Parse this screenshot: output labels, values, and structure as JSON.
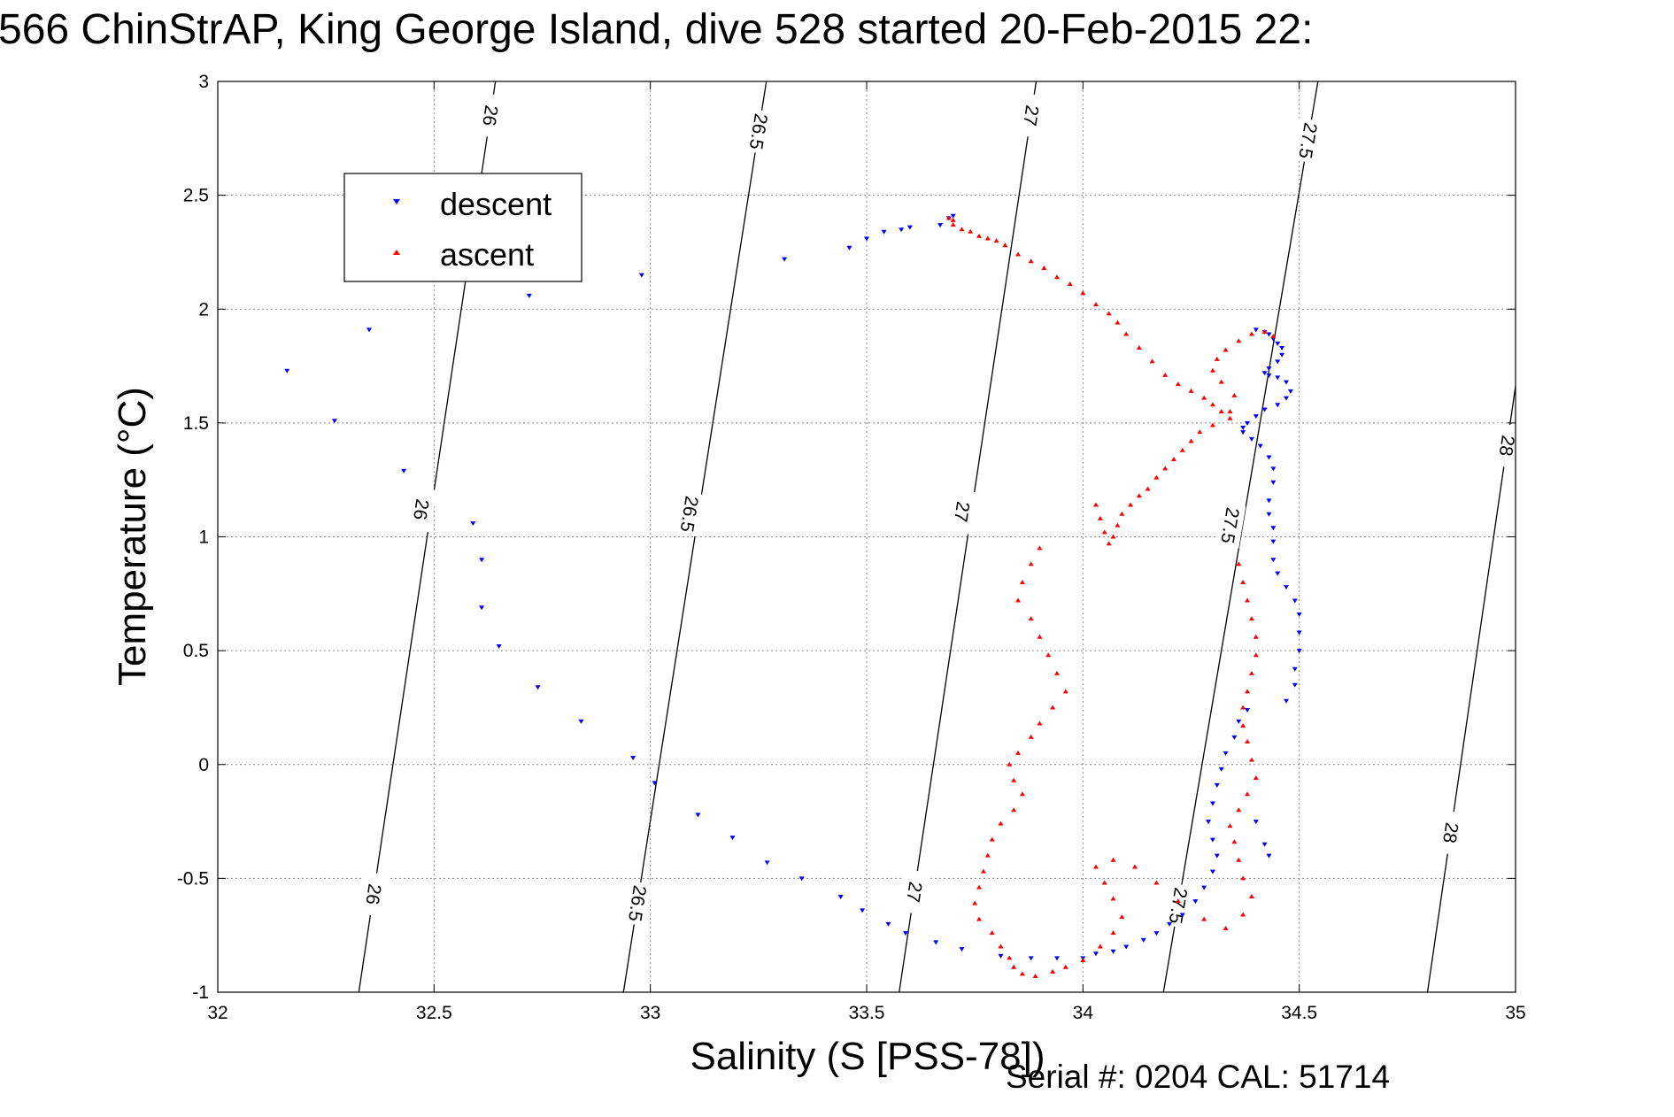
{
  "chart_data": {
    "type": "scatter",
    "title": "566 ChinStrAP, King George Island, dive 528 started 20-Feb-2015 22:",
    "xlabel": "Salinity (S [PSS-78])",
    "ylabel": "Temperature (°C)",
    "xlim": [
      32,
      35
    ],
    "ylim": [
      -1,
      3
    ],
    "xticks": [
      "32",
      "32.5",
      "33",
      "33.5",
      "34",
      "34.5",
      "35"
    ],
    "yticks": [
      "-1",
      "-0.5",
      "0",
      "0.5",
      "1",
      "1.5",
      "2",
      "2.5",
      "3"
    ],
    "grid": true,
    "legend": {
      "placement": "upper-left",
      "entries": [
        "descent",
        "ascent"
      ]
    },
    "colors": {
      "descent": "#0000ff",
      "ascent": "#ff0000",
      "contour": "#000000"
    },
    "series": [
      {
        "name": "descent",
        "marker": "triangle-down",
        "points": [
          [
            32.16,
            1.73
          ],
          [
            32.27,
            1.51
          ],
          [
            32.35,
            1.91
          ],
          [
            32.43,
            1.29
          ],
          [
            32.59,
            1.06
          ],
          [
            32.61,
            0.9
          ],
          [
            32.61,
            0.69
          ],
          [
            32.65,
            0.52
          ],
          [
            32.72,
            2.06
          ],
          [
            32.74,
            0.34
          ],
          [
            32.84,
            0.19
          ],
          [
            32.96,
            0.03
          ],
          [
            32.98,
            2.15
          ],
          [
            33.01,
            -0.08
          ],
          [
            33.11,
            -0.22
          ],
          [
            33.19,
            -0.32
          ],
          [
            33.27,
            -0.43
          ],
          [
            33.31,
            2.22
          ],
          [
            33.35,
            -0.5
          ],
          [
            33.44,
            -0.58
          ],
          [
            33.46,
            2.27
          ],
          [
            33.49,
            -0.64
          ],
          [
            33.5,
            2.31
          ],
          [
            33.54,
            2.34
          ],
          [
            33.58,
            2.35
          ],
          [
            33.6,
            2.36
          ],
          [
            33.67,
            2.37
          ],
          [
            33.69,
            2.4
          ],
          [
            33.7,
            2.41
          ],
          [
            33.55,
            -0.7
          ],
          [
            33.59,
            -0.74
          ],
          [
            33.66,
            -0.78
          ],
          [
            33.72,
            -0.81
          ],
          [
            33.81,
            -0.84
          ],
          [
            33.88,
            -0.85
          ],
          [
            33.94,
            -0.85
          ],
          [
            34.0,
            -0.85
          ],
          [
            34.03,
            -0.83
          ],
          [
            34.07,
            -0.82
          ],
          [
            34.1,
            -0.8
          ],
          [
            34.14,
            -0.77
          ],
          [
            34.17,
            -0.74
          ],
          [
            34.2,
            -0.7
          ],
          [
            34.23,
            -0.66
          ],
          [
            34.26,
            -0.6
          ],
          [
            34.28,
            -0.54
          ],
          [
            34.3,
            -0.47
          ],
          [
            34.31,
            -0.4
          ],
          [
            34.3,
            -0.33
          ],
          [
            34.29,
            -0.25
          ],
          [
            34.3,
            -0.17
          ],
          [
            34.31,
            -0.09
          ],
          [
            34.32,
            -0.02
          ],
          [
            34.33,
            0.05
          ],
          [
            34.35,
            0.12
          ],
          [
            34.36,
            0.19
          ],
          [
            34.38,
            0.24
          ],
          [
            34.4,
            -0.25
          ],
          [
            34.42,
            -0.35
          ],
          [
            34.43,
            -0.4
          ],
          [
            34.47,
            0.28
          ],
          [
            34.49,
            0.35
          ],
          [
            34.49,
            0.42
          ],
          [
            34.5,
            0.5
          ],
          [
            34.5,
            0.58
          ],
          [
            34.5,
            0.66
          ],
          [
            34.49,
            0.72
          ],
          [
            34.47,
            0.78
          ],
          [
            34.45,
            0.84
          ],
          [
            34.44,
            0.9
          ],
          [
            34.44,
            0.98
          ],
          [
            34.44,
            1.04
          ],
          [
            34.43,
            1.1
          ],
          [
            34.43,
            1.16
          ],
          [
            34.44,
            1.24
          ],
          [
            34.44,
            1.3
          ],
          [
            34.43,
            1.35
          ],
          [
            34.41,
            1.4
          ],
          [
            34.39,
            1.43
          ],
          [
            34.37,
            1.46
          ],
          [
            34.37,
            1.48
          ],
          [
            34.38,
            1.5
          ],
          [
            34.4,
            1.53
          ],
          [
            34.42,
            1.56
          ],
          [
            34.45,
            1.58
          ],
          [
            34.47,
            1.61
          ],
          [
            34.48,
            1.64
          ],
          [
            34.47,
            1.68
          ],
          [
            34.45,
            1.7
          ],
          [
            34.43,
            1.71
          ],
          [
            34.42,
            1.72
          ],
          [
            34.43,
            1.74
          ],
          [
            34.45,
            1.77
          ],
          [
            34.46,
            1.8
          ],
          [
            34.46,
            1.83
          ],
          [
            34.45,
            1.85
          ],
          [
            34.44,
            1.87
          ],
          [
            34.43,
            1.89
          ],
          [
            34.42,
            1.9
          ],
          [
            34.4,
            1.91
          ]
        ]
      },
      {
        "name": "ascent",
        "marker": "triangle-up",
        "points": [
          [
            33.69,
            2.4
          ],
          [
            33.7,
            2.39
          ],
          [
            33.7,
            2.37
          ],
          [
            33.72,
            2.35
          ],
          [
            33.74,
            2.34
          ],
          [
            33.76,
            2.32
          ],
          [
            33.78,
            2.31
          ],
          [
            33.8,
            2.3
          ],
          [
            33.82,
            2.28
          ],
          [
            33.85,
            2.24
          ],
          [
            33.88,
            2.21
          ],
          [
            33.91,
            2.18
          ],
          [
            33.94,
            2.14
          ],
          [
            33.97,
            2.11
          ],
          [
            34.0,
            2.07
          ],
          [
            34.03,
            2.02
          ],
          [
            34.06,
            1.98
          ],
          [
            34.08,
            1.94
          ],
          [
            34.1,
            1.89
          ],
          [
            34.13,
            1.83
          ],
          [
            34.16,
            1.77
          ],
          [
            34.19,
            1.71
          ],
          [
            34.22,
            1.67
          ],
          [
            34.25,
            1.64
          ],
          [
            34.28,
            1.61
          ],
          [
            34.3,
            1.58
          ],
          [
            34.32,
            1.55
          ],
          [
            34.34,
            1.52
          ],
          [
            34.3,
            1.49
          ],
          [
            34.27,
            1.46
          ],
          [
            34.25,
            1.42
          ],
          [
            34.23,
            1.38
          ],
          [
            34.21,
            1.34
          ],
          [
            34.19,
            1.3
          ],
          [
            34.17,
            1.26
          ],
          [
            34.15,
            1.21
          ],
          [
            34.13,
            1.18
          ],
          [
            34.11,
            1.14
          ],
          [
            34.09,
            1.1
          ],
          [
            34.08,
            1.05
          ],
          [
            34.07,
            1.0
          ],
          [
            34.06,
            0.97
          ],
          [
            34.05,
            1.02
          ],
          [
            34.04,
            1.08
          ],
          [
            34.03,
            1.14
          ],
          [
            34.34,
            1.55
          ],
          [
            34.35,
            1.62
          ],
          [
            34.32,
            1.68
          ],
          [
            34.3,
            1.73
          ],
          [
            34.31,
            1.78
          ],
          [
            34.33,
            1.82
          ],
          [
            34.36,
            1.86
          ],
          [
            34.39,
            1.89
          ],
          [
            34.42,
            1.9
          ],
          [
            34.44,
            1.88
          ],
          [
            33.9,
            0.95
          ],
          [
            33.88,
            0.88
          ],
          [
            33.86,
            0.8
          ],
          [
            33.85,
            0.72
          ],
          [
            33.88,
            0.64
          ],
          [
            33.9,
            0.56
          ],
          [
            33.92,
            0.48
          ],
          [
            33.94,
            0.4
          ],
          [
            33.96,
            0.32
          ],
          [
            33.93,
            0.25
          ],
          [
            33.9,
            0.18
          ],
          [
            33.88,
            0.12
          ],
          [
            33.85,
            0.05
          ],
          [
            33.83,
            0.0
          ],
          [
            33.84,
            -0.07
          ],
          [
            33.86,
            -0.13
          ],
          [
            33.84,
            -0.2
          ],
          [
            33.81,
            -0.26
          ],
          [
            33.79,
            -0.33
          ],
          [
            33.78,
            -0.4
          ],
          [
            33.77,
            -0.47
          ],
          [
            33.76,
            -0.54
          ],
          [
            33.75,
            -0.61
          ],
          [
            33.76,
            -0.68
          ],
          [
            33.79,
            -0.74
          ],
          [
            33.81,
            -0.8
          ],
          [
            33.83,
            -0.85
          ],
          [
            33.84,
            -0.89
          ],
          [
            33.86,
            -0.92
          ],
          [
            33.89,
            -0.93
          ],
          [
            33.93,
            -0.91
          ],
          [
            33.96,
            -0.89
          ],
          [
            34.0,
            -0.86
          ],
          [
            34.04,
            -0.8
          ],
          [
            34.07,
            -0.74
          ],
          [
            34.09,
            -0.67
          ],
          [
            34.07,
            -0.59
          ],
          [
            34.05,
            -0.52
          ],
          [
            34.03,
            -0.45
          ],
          [
            34.07,
            -0.42
          ],
          [
            34.12,
            -0.45
          ],
          [
            34.17,
            -0.52
          ],
          [
            34.22,
            -0.6
          ],
          [
            34.28,
            -0.68
          ],
          [
            34.33,
            -0.72
          ],
          [
            34.37,
            -0.66
          ],
          [
            34.39,
            -0.58
          ],
          [
            34.37,
            -0.5
          ],
          [
            34.36,
            -0.42
          ],
          [
            34.35,
            -0.34
          ],
          [
            34.34,
            -0.27
          ],
          [
            34.36,
            -0.2
          ],
          [
            34.38,
            -0.13
          ],
          [
            34.4,
            -0.06
          ],
          [
            34.39,
            0.02
          ],
          [
            34.38,
            0.1
          ],
          [
            34.37,
            0.17
          ],
          [
            34.37,
            0.25
          ],
          [
            34.38,
            0.32
          ],
          [
            34.39,
            0.4
          ],
          [
            34.4,
            0.48
          ],
          [
            34.4,
            0.56
          ],
          [
            34.39,
            0.64
          ],
          [
            34.38,
            0.72
          ],
          [
            34.37,
            0.8
          ],
          [
            34.36,
            0.88
          ]
        ]
      }
    ],
    "contours": [
      {
        "label": "26",
        "label_positions": [
          [
            32.63,
            2.85
          ],
          [
            32.47,
            1.12
          ],
          [
            32.36,
            -0.57
          ]
        ]
      },
      {
        "label": "26.5",
        "label_positions": [
          [
            33.25,
            2.78
          ],
          [
            33.09,
            1.1
          ],
          [
            32.97,
            -0.61
          ]
        ]
      },
      {
        "label": "27",
        "label_positions": [
          [
            33.88,
            2.85
          ],
          [
            33.72,
            1.11
          ],
          [
            33.61,
            -0.56
          ]
        ]
      },
      {
        "label": "27.5",
        "label_positions": [
          [
            34.52,
            2.74
          ],
          [
            34.34,
            1.05
          ],
          [
            34.22,
            -0.62
          ]
        ]
      },
      {
        "label": "28",
        "label_positions": [
          [
            34.98,
            1.4
          ],
          [
            34.85,
            -0.3
          ]
        ]
      }
    ]
  },
  "footer": {
    "serial_cal": "Serial #: 0204  CAL: 51714"
  }
}
